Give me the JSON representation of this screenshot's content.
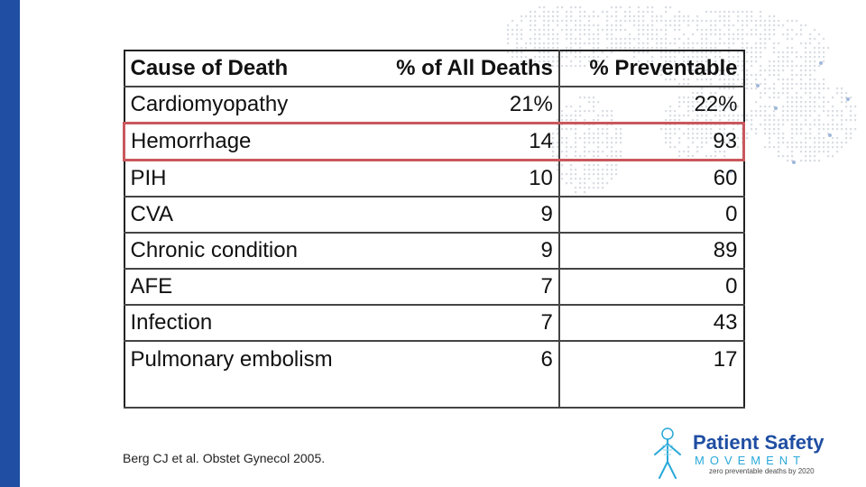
{
  "table": {
    "headers": [
      "Cause of Death",
      "% of All Deaths",
      "% Preventable"
    ],
    "rows": [
      {
        "cause": "Cardiomyopathy",
        "pct_all": "21%",
        "pct_prev": "22%"
      },
      {
        "cause": "Hemorrhage",
        "pct_all": "14",
        "pct_prev": "93"
      },
      {
        "cause": "PIH",
        "pct_all": "10",
        "pct_prev": "60"
      },
      {
        "cause": "CVA",
        "pct_all": "9",
        "pct_prev": "0"
      },
      {
        "cause": "Chronic condition",
        "pct_all": "9",
        "pct_prev": "89"
      },
      {
        "cause": "AFE",
        "pct_all": "7",
        "pct_prev": "0"
      },
      {
        "cause": "Infection",
        "pct_all": "7",
        "pct_prev": "43"
      },
      {
        "cause": "Pulmonary embolism",
        "pct_all": "6",
        "pct_prev": "17"
      }
    ]
  },
  "citation": "Berg CJ et al. Obstet Gynecol 2005.",
  "logo": {
    "title": "Patient Safety",
    "subtitle": "MOVEMENT",
    "tagline": "zero preventable deaths by 2020"
  },
  "colors": {
    "accent_bar": "#1f4ea3",
    "highlight": "#c9585d",
    "logo_blue": "#1f4ea3",
    "logo_cyan": "#29a9d9"
  },
  "icons": [
    "world-map-dots",
    "human-figure-icon"
  ]
}
